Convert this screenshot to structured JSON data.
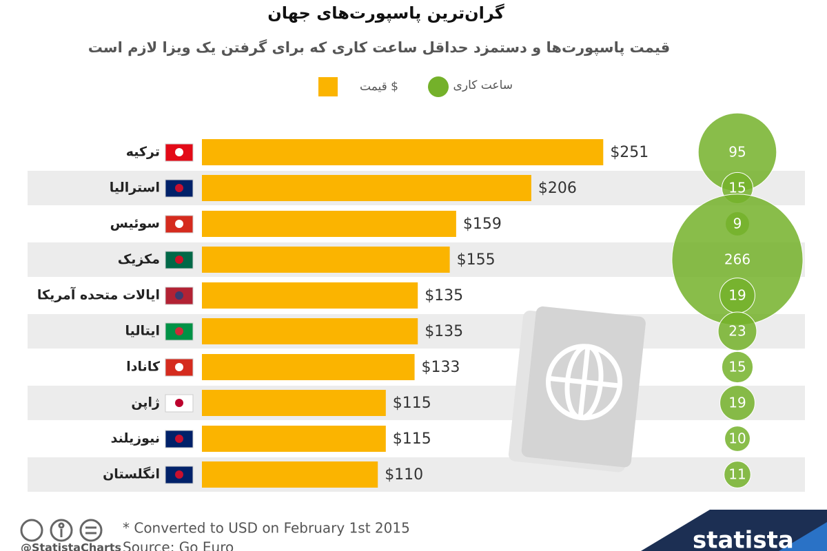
{
  "chart_data": {
    "type": "bar",
    "title": "گران‌ترین پاسپورت‌های جهان",
    "subtitle": "قیمت پاسپورت‌ها و دستمزد حداقل ساعت کاری که برای گرفتن یک ویزا لازم است",
    "categories": [
      "ترکیه",
      "استرالیا",
      "سوئیس",
      "مکزیک",
      "ایالات متحده آمریکا",
      "ایتالیا",
      "کانادا",
      "ژاپن",
      "نیوزیلند",
      "انگلستان"
    ],
    "series": [
      {
        "name": "$ قیمت",
        "color": "#fbb400",
        "values": [
          251,
          206,
          159,
          155,
          135,
          135,
          133,
          115,
          115,
          110
        ],
        "value_labels": [
          "$251",
          "$206",
          "$159",
          "$155",
          "$135",
          "$135",
          "$133",
          "$115",
          "$115",
          "$110"
        ]
      },
      {
        "name": "ساعت کاری",
        "color": "#74b12a",
        "values": [
          95,
          15,
          9,
          266,
          19,
          23,
          15,
          19,
          10,
          11
        ]
      }
    ],
    "footnote": "* Converted to USD on February 1st 2015",
    "source": "Source: Go Euro",
    "credit": "@StatistaCharts",
    "brand": "statista"
  }
}
